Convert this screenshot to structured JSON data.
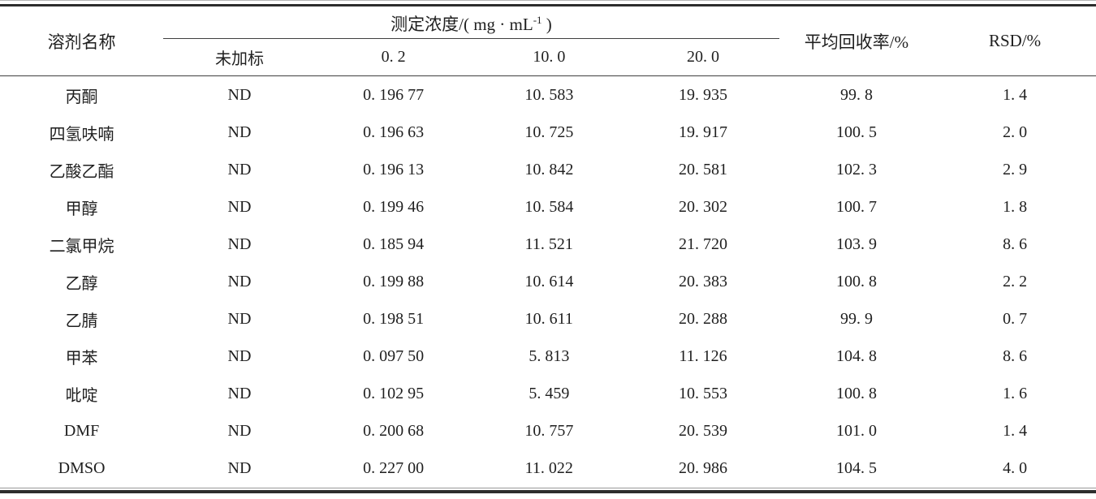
{
  "table": {
    "headers": {
      "solvent": "溶剂名称",
      "concentration_prefix": "测定浓度/( mg · mL",
      "concentration_sup": "-1",
      "concentration_suffix": " )",
      "recovery": "平均回收率/%",
      "rsd": "RSD/%"
    },
    "subheaders": [
      "未加标",
      "0. 2",
      "10. 0",
      "20. 0"
    ],
    "rows": [
      [
        "丙酮",
        "ND",
        "0. 196 77",
        "10. 583",
        "19. 935",
        "99. 8",
        "1. 4"
      ],
      [
        "四氢呋喃",
        "ND",
        "0. 196 63",
        "10. 725",
        "19. 917",
        "100. 5",
        "2. 0"
      ],
      [
        "乙酸乙酯",
        "ND",
        "0. 196 13",
        "10. 842",
        "20. 581",
        "102. 3",
        "2. 9"
      ],
      [
        "甲醇",
        "ND",
        "0. 199 46",
        "10. 584",
        "20. 302",
        "100. 7",
        "1. 8"
      ],
      [
        "二氯甲烷",
        "ND",
        "0. 185 94",
        "11. 521",
        "21. 720",
        "103. 9",
        "8. 6"
      ],
      [
        "乙醇",
        "ND",
        "0. 199 88",
        "10. 614",
        "20. 383",
        "100. 8",
        "2. 2"
      ],
      [
        "乙腈",
        "ND",
        "0. 198 51",
        "10. 611",
        "20. 288",
        "99. 9",
        "0. 7"
      ],
      [
        "甲苯",
        "ND",
        "0. 097 50",
        "5. 813",
        "11. 126",
        "104. 8",
        "8. 6"
      ],
      [
        "吡啶",
        "ND",
        "0. 102 95",
        "5. 459",
        "10. 553",
        "100. 8",
        "1. 6"
      ],
      [
        "DMF",
        "ND",
        "0. 200 68",
        "10. 757",
        "20. 539",
        "101. 0",
        "1. 4"
      ],
      [
        "DMSO",
        "ND",
        "0. 227 00",
        "11. 022",
        "20. 986",
        "104. 5",
        "4. 0"
      ]
    ],
    "colors": {
      "background": "#ffffff",
      "text": "#1f1f1f",
      "rule_dark": "#2d2d2d",
      "rule_thin": "#9a9a9a"
    }
  }
}
